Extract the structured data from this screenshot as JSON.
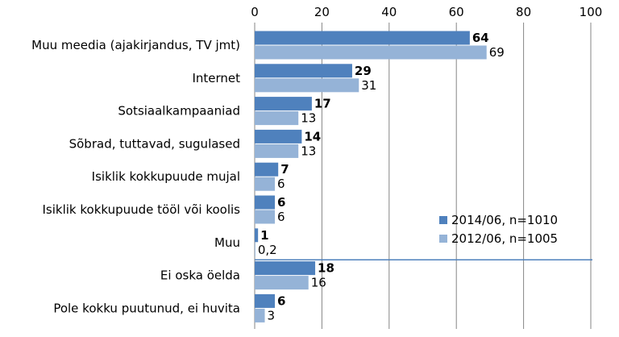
{
  "chart_data": {
    "type": "bar",
    "orientation": "horizontal",
    "xlim": [
      0,
      100
    ],
    "x_ticks": [
      0,
      20,
      40,
      60,
      80,
      100
    ],
    "x_tick_labels": [
      "0",
      "20",
      "40",
      "60",
      "80",
      "100"
    ],
    "tick_position": "top",
    "grid": true,
    "legend_position": "bottom-right",
    "categories": [
      "Muu meedia (ajakirjandus, TV jmt)",
      "Internet",
      "Sotsiaalkampaaniad",
      "Sõbrad, tuttavad, sugulased",
      "Isiklik kokkupuude mujal",
      "Isiklik kokkupuude tööl või koolis",
      "Muu",
      "Ei oska öelda",
      "Pole kokku puutunud,  ei huvita"
    ],
    "separator_after_category": "Muu",
    "series": [
      {
        "name": "2014/06, n=1010",
        "color": "#4f81bd",
        "values": [
          64,
          29,
          17,
          14,
          7,
          6,
          1,
          18,
          6
        ],
        "value_labels": [
          "64",
          "29",
          "17",
          "14",
          "7",
          "6",
          "1",
          "18",
          "6"
        ],
        "label_bold": true
      },
      {
        "name": "2012/06, n=1005",
        "color": "#95b3d7",
        "values": [
          69,
          31,
          13,
          13,
          6,
          6,
          0.2,
          16,
          3
        ],
        "value_labels": [
          "69",
          "31",
          "13",
          "13",
          "6",
          "6",
          "0,2",
          "16",
          "3"
        ],
        "label_bold": false
      }
    ],
    "colors": {
      "grid": "#868686",
      "separator": "#4f81bd"
    }
  }
}
